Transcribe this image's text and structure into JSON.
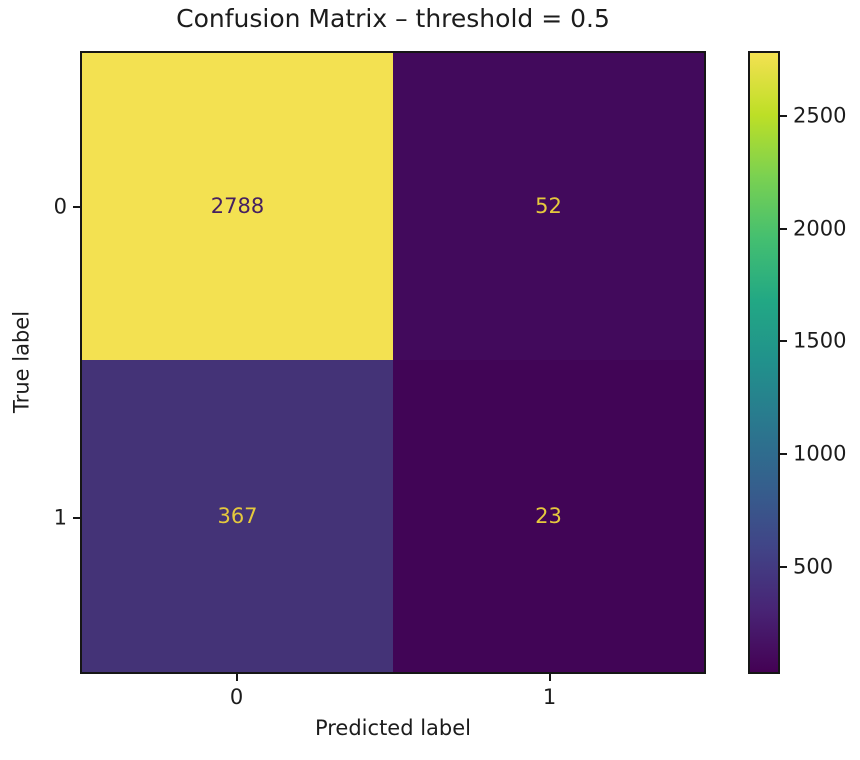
{
  "chart_data": {
    "type": "heatmap",
    "title": "Confusion Matrix – threshold = 0.5",
    "xlabel": "Predicted label",
    "ylabel": "True label",
    "x_tick_labels": [
      "0",
      "1"
    ],
    "y_tick_labels": [
      "0",
      "1"
    ],
    "matrix": [
      [
        2788,
        52
      ],
      [
        367,
        23
      ]
    ],
    "vmin": 23,
    "vmax": 2788,
    "colormap": "viridis",
    "colorbar_tick_values": [
      500,
      1000,
      1500,
      2000,
      2500
    ],
    "colorbar_tick_labels": [
      "500",
      "1000",
      "1500",
      "2000",
      "2500"
    ],
    "cell_colors": [
      [
        "#f3e151",
        "#420a5c"
      ],
      [
        "#443377",
        "#410556"
      ]
    ],
    "cell_text_colors": [
      [
        "#452060",
        "#e5c93d"
      ],
      [
        "#e5c93d",
        "#e5c93d"
      ]
    ],
    "viridis_stops": [
      "#440154",
      "#482475",
      "#414487",
      "#355f8d",
      "#2a788e",
      "#21918c",
      "#22a884",
      "#44bf70",
      "#7ad151",
      "#bddf26",
      "#f3e151"
    ],
    "axis_color": "#161616",
    "grid": false,
    "legend_position": "right-colorbar"
  }
}
